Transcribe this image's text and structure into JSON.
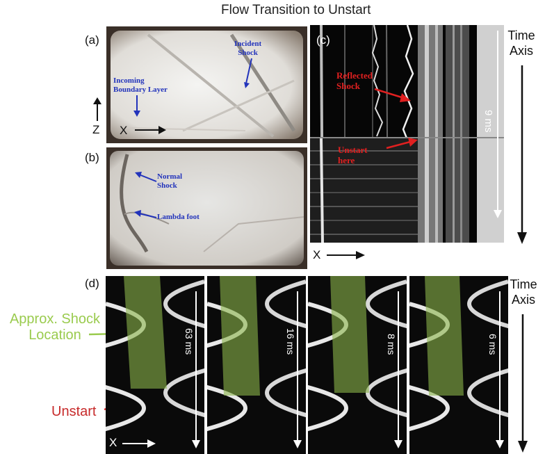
{
  "title": "Flow Transition to Unstart",
  "panels": {
    "a": {
      "letter": "(a)",
      "incident": [
        "Incident",
        "Shock"
      ],
      "boundary": [
        "Incoming",
        "Boundary Layer"
      ],
      "z_label": "Z",
      "x_label": "X"
    },
    "b": {
      "letter": "(b)",
      "normal": [
        "Normal",
        "Shock"
      ],
      "lambda": "Lambda foot"
    },
    "c": {
      "letter": "(c)",
      "reflected": [
        "Reflected",
        "Shock"
      ],
      "unstart": [
        "Unstart",
        "here"
      ],
      "duration": "9 ms",
      "time_axis": [
        "Time",
        "Axis"
      ],
      "x_label": "X"
    },
    "d": {
      "letter": "(d)",
      "shock_label": [
        "Approx. Shock",
        "Location"
      ],
      "unstart": "Unstart",
      "durations": [
        "63 ms",
        "16 ms",
        "8 ms",
        "6 ms"
      ],
      "time_axis": [
        "Time",
        "Axis"
      ],
      "x_label": "X"
    }
  },
  "colors": {
    "annotation_blue": "#2233bb",
    "annotation_red": "#e02020",
    "shock_green": "#9acb4e",
    "unstart_red": "#c72a2a"
  }
}
